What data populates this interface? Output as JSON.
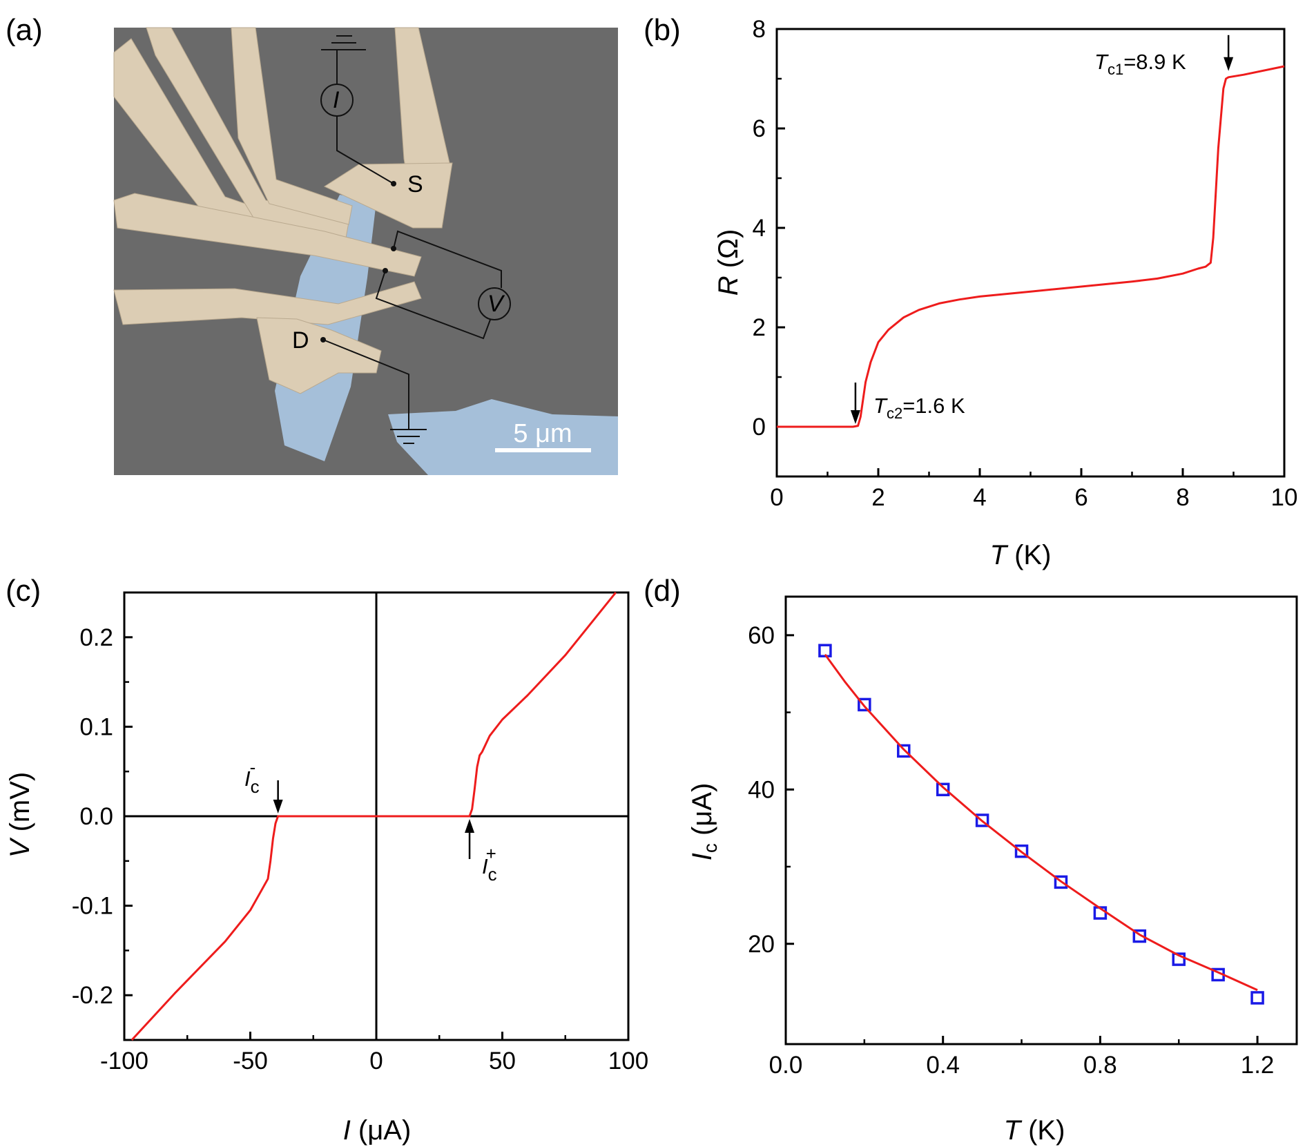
{
  "panels": {
    "a": {
      "letter": "(a)",
      "labels": {
        "source": "S",
        "drain": "D",
        "current_meter": "I",
        "voltmeter": "V",
        "scale_bar": "5 μm"
      },
      "colors": {
        "background": "#6a6a6a",
        "electrodes": "#dccdb4",
        "flake": "#a5bfd9",
        "wiring": "#111111"
      }
    },
    "b": {
      "letter": "(b)",
      "axis_titles": {
        "x_var": "T",
        "x_unit": " (K)",
        "y_var": "R",
        "y_unit": " (Ω)"
      },
      "annotations": [
        {
          "var": "T",
          "sub": "c2",
          "text": "=1.6 K"
        },
        {
          "var": "T",
          "sub": "c1",
          "text": "=8.9 K"
        }
      ]
    },
    "c": {
      "letter": "(c)",
      "axis_titles": {
        "x_var": "I",
        "x_unit": " (μA)",
        "y_var": "V",
        "y_unit": " (mV)"
      },
      "annotations": [
        {
          "var": "I",
          "sub": "c",
          "sup": "-"
        },
        {
          "var": "I",
          "sub": "c",
          "sup": "+"
        }
      ]
    },
    "d": {
      "letter": "(d)",
      "axis_titles": {
        "x_var": "T",
        "x_unit": " (K)",
        "y_var": "I",
        "y_sub": "c",
        "y_unit": " (μA)"
      }
    }
  },
  "chart_data": [
    {
      "panel": "b",
      "type": "line",
      "xlim": [
        0,
        10
      ],
      "ylim": [
        -1,
        8
      ],
      "x_ticks": [
        0,
        2,
        4,
        6,
        8,
        10
      ],
      "x_tick_labels": [
        "0",
        "2",
        "4",
        "6",
        "8",
        "10"
      ],
      "y_ticks": [
        0,
        2,
        4,
        6,
        8
      ],
      "y_tick_labels": [
        "0",
        "2",
        "4",
        "6",
        "8"
      ],
      "grid": false,
      "series": [
        {
          "color": "#ee1c1c",
          "x": [
            0,
            1.0,
            1.5,
            1.6,
            1.65,
            1.75,
            1.85,
            2.0,
            2.2,
            2.5,
            2.8,
            3.2,
            3.6,
            4.0,
            5.0,
            6.0,
            7.0,
            7.5,
            8.0,
            8.3,
            8.45,
            8.55,
            8.6,
            8.7,
            8.8,
            8.85,
            8.9,
            9.2,
            10.0
          ],
          "y": [
            0,
            0,
            0,
            0.02,
            0.2,
            0.9,
            1.3,
            1.7,
            1.95,
            2.2,
            2.35,
            2.48,
            2.56,
            2.62,
            2.72,
            2.82,
            2.92,
            2.98,
            3.08,
            3.18,
            3.22,
            3.3,
            3.8,
            5.6,
            6.8,
            7.0,
            7.03,
            7.08,
            7.25
          ]
        }
      ],
      "markers": [
        {
          "x": 1.55,
          "y": 0
        },
        {
          "x": 8.9,
          "y": 7.1
        }
      ]
    },
    {
      "panel": "c",
      "type": "line",
      "xlim": [
        -100,
        100
      ],
      "ylim": [
        -0.25,
        0.25
      ],
      "x_ticks": [
        -100,
        -50,
        0,
        50,
        100
      ],
      "x_tick_labels": [
        "-100",
        "-50",
        "0",
        "50",
        "100"
      ],
      "y_ticks": [
        -0.2,
        -0.1,
        0.0,
        0.1,
        0.2
      ],
      "y_tick_labels": [
        "-0.2",
        "-0.1",
        "0.0",
        "0.1",
        "0.2"
      ],
      "grid": false,
      "zero_lines": true,
      "series": [
        {
          "color": "#ee1c1c",
          "x": [
            -97,
            -80,
            -60,
            -50,
            -46,
            -43,
            -42,
            -41,
            -40,
            -39,
            -38,
            0,
            37,
            38,
            39,
            40,
            41,
            42,
            45,
            50,
            60,
            75,
            95
          ],
          "y": [
            -0.25,
            -0.198,
            -0.14,
            -0.105,
            -0.085,
            -0.07,
            -0.05,
            -0.025,
            -0.008,
            0,
            0,
            0,
            0,
            0.008,
            0.03,
            0.055,
            0.068,
            0.072,
            0.09,
            0.108,
            0.135,
            0.18,
            0.25
          ]
        }
      ],
      "markers": [
        {
          "x": -39,
          "y": 0
        },
        {
          "x": 37,
          "y": 0
        }
      ]
    },
    {
      "panel": "d",
      "type": "scatter",
      "xlim": [
        0,
        1.3
      ],
      "ylim": [
        7,
        65
      ],
      "x_ticks": [
        0.0,
        0.4,
        0.8,
        1.2
      ],
      "x_tick_labels": [
        "0.0",
        "0.4",
        "0.8",
        "1.2"
      ],
      "y_ticks": [
        20,
        40,
        60
      ],
      "y_tick_labels": [
        "20",
        "40",
        "60"
      ],
      "grid": false,
      "series": [
        {
          "marker_color": "#1a1ae6",
          "x": [
            0.1,
            0.2,
            0.3,
            0.4,
            0.5,
            0.6,
            0.7,
            0.8,
            0.9,
            1.0,
            1.1,
            1.2
          ],
          "y": [
            58,
            51,
            45,
            40,
            36,
            32,
            28,
            24,
            21,
            18,
            16,
            13
          ]
        },
        {
          "type": "line",
          "color": "#ee1c1c",
          "x": [
            0.1,
            0.15,
            0.2,
            0.3,
            0.4,
            0.5,
            0.6,
            0.7,
            0.8,
            0.9,
            1.0,
            1.1,
            1.2
          ],
          "y": [
            57.5,
            54,
            50.8,
            45.2,
            40.3,
            35.9,
            31.9,
            28.1,
            24.6,
            21.2,
            18.5,
            16.3,
            14.0
          ]
        }
      ]
    }
  ]
}
